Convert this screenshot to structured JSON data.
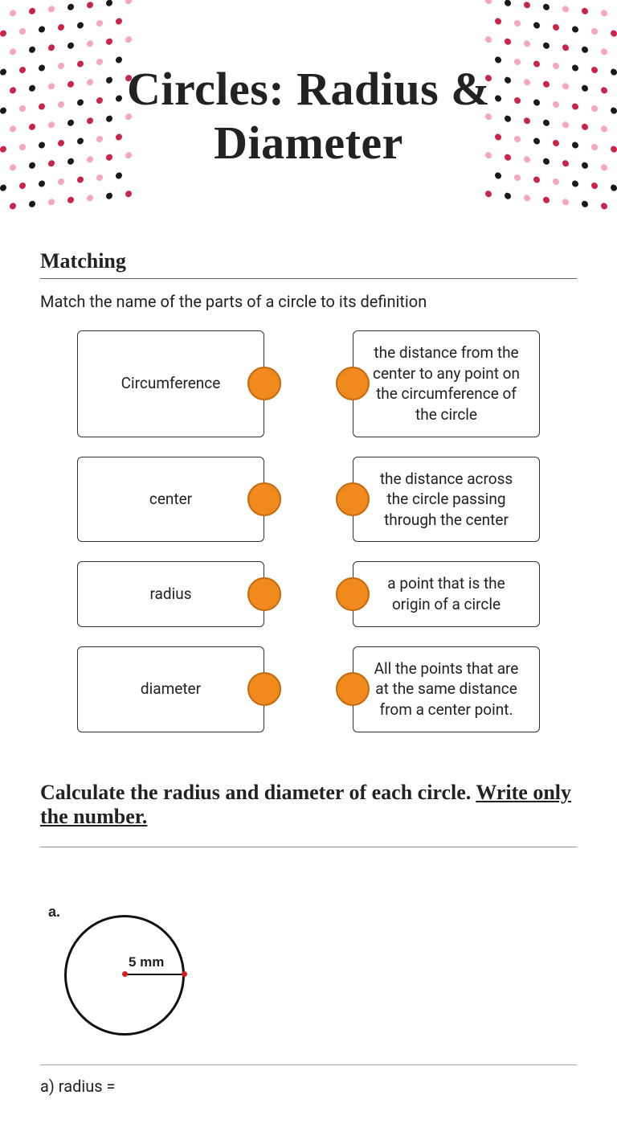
{
  "title": "Circles: Radius & Diameter",
  "decor": {
    "dot_rows": 12,
    "dot_cols": 7,
    "spacing": 24,
    "radius": 4,
    "colors": [
      "#1a1a1a",
      "#f4a7bd",
      "#c9254a",
      "#f4a7bd",
      "#1a1a1a",
      "#c9254a"
    ]
  },
  "matching": {
    "heading": "Matching",
    "instruction": "Match the name of the parts of a circle to its definition",
    "left": [
      "Circumference",
      "center",
      "radius",
      "diameter"
    ],
    "right": [
      "the distance from the center to any point on the circumference of the circle",
      "the distance across the circle passing through the center",
      "a point that is the origin of a circle",
      "All the points that are at the same distance from a center point."
    ],
    "peg_color": "#f18a1c",
    "peg_border": "#c46a0c"
  },
  "calc": {
    "heading_prefix": "Calculate the radius and diameter of each circle. ",
    "heading_emph": "Write only the number.",
    "figure": {
      "label": "a.",
      "radius_text": "5 mm"
    },
    "answer_prompt": "a) radius ="
  }
}
